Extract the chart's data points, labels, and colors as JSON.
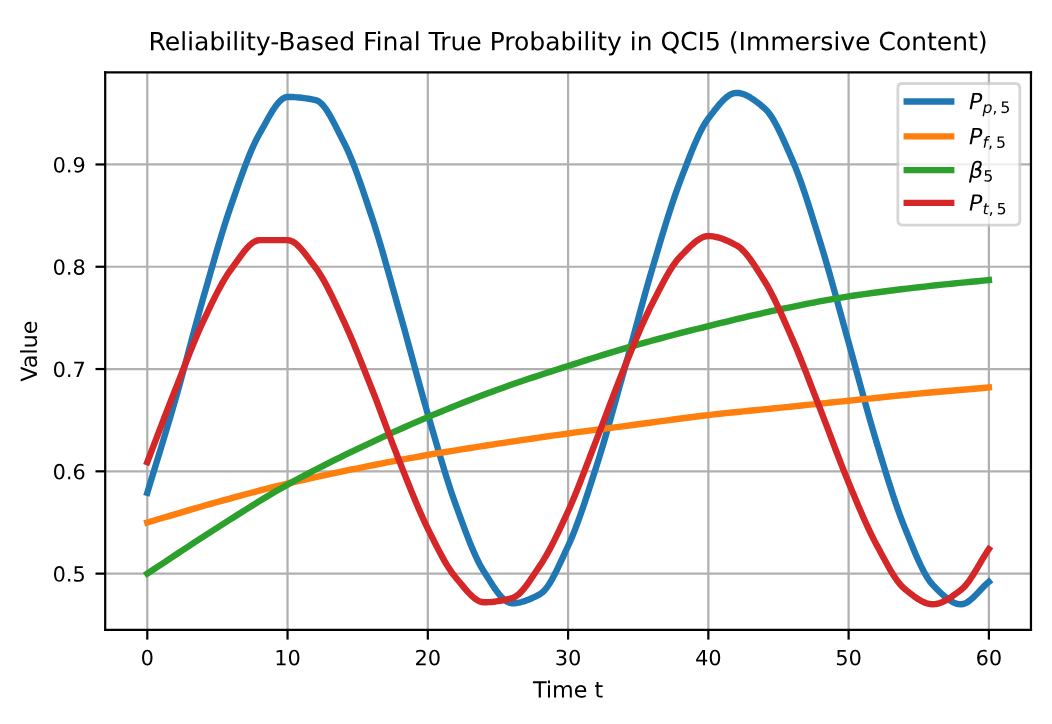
{
  "chart_data": {
    "type": "line",
    "title": "Reliability-Based Final True Probability in QCI5 (Immersive Content)",
    "xlabel": "Time t",
    "ylabel": "Value",
    "xlim": [
      -3,
      63
    ],
    "xticks": [
      0,
      10,
      20,
      30,
      40,
      50,
      60
    ],
    "ylim": [
      0.445,
      0.99
    ],
    "yticks": [
      0.5,
      0.6,
      0.7,
      0.8,
      0.9
    ],
    "grid": true,
    "legend": "top right",
    "line_style": "solid",
    "marker": "none",
    "series": [
      {
        "name": "P$_{p,5}$",
        "color": "#1f77b4",
        "x": [
          0,
          2,
          4,
          6,
          8,
          10,
          12,
          14,
          16,
          18,
          20,
          22,
          24,
          26,
          28,
          30,
          32,
          34,
          36,
          38,
          40,
          42,
          44,
          46,
          48,
          50,
          52,
          54,
          56,
          58,
          60
        ],
        "values": [
          0.579,
          0.67,
          0.77,
          0.861,
          0.93,
          0.966,
          0.963,
          0.922,
          0.849,
          0.755,
          0.656,
          0.567,
          0.502,
          0.471,
          0.48,
          0.527,
          0.604,
          0.699,
          0.798,
          0.884,
          0.945,
          0.97,
          0.955,
          0.904,
          0.823,
          0.726,
          0.628,
          0.545,
          0.489,
          0.47,
          0.492
        ]
      },
      {
        "name": "P$_{f,5}$",
        "color": "#ff7f0e",
        "x": [
          0,
          5,
          10,
          15,
          20,
          25,
          30,
          35,
          40,
          45,
          50,
          55,
          60
        ],
        "values": [
          0.55,
          0.57,
          0.588,
          0.603,
          0.616,
          0.627,
          0.637,
          0.646,
          0.655,
          0.662,
          0.669,
          0.676,
          0.682
        ]
      },
      {
        "name": "β$_{5}$",
        "color": "#2ca02c",
        "x": [
          0,
          5,
          10,
          15,
          20,
          25,
          30,
          35,
          40,
          45,
          50,
          55,
          60
        ],
        "values": [
          0.5,
          0.545,
          0.587,
          0.622,
          0.653,
          0.68,
          0.703,
          0.724,
          0.742,
          0.758,
          0.771,
          0.78,
          0.787
        ]
      },
      {
        "name": "P$_{t,5}$",
        "color": "#d62728",
        "x": [
          0,
          2,
          4,
          6,
          8,
          10,
          12,
          14,
          16,
          18,
          20,
          22,
          24,
          26,
          28,
          30,
          32,
          34,
          36,
          38,
          40,
          42,
          44,
          46,
          48,
          50,
          52,
          54,
          56,
          58,
          60
        ],
        "values": [
          0.609,
          0.68,
          0.747,
          0.798,
          0.826,
          0.826,
          0.799,
          0.747,
          0.681,
          0.609,
          0.544,
          0.496,
          0.472,
          0.476,
          0.508,
          0.561,
          0.63,
          0.701,
          0.764,
          0.81,
          0.83,
          0.821,
          0.786,
          0.729,
          0.66,
          0.589,
          0.528,
          0.485,
          0.47,
          0.484,
          0.524
        ]
      }
    ]
  }
}
